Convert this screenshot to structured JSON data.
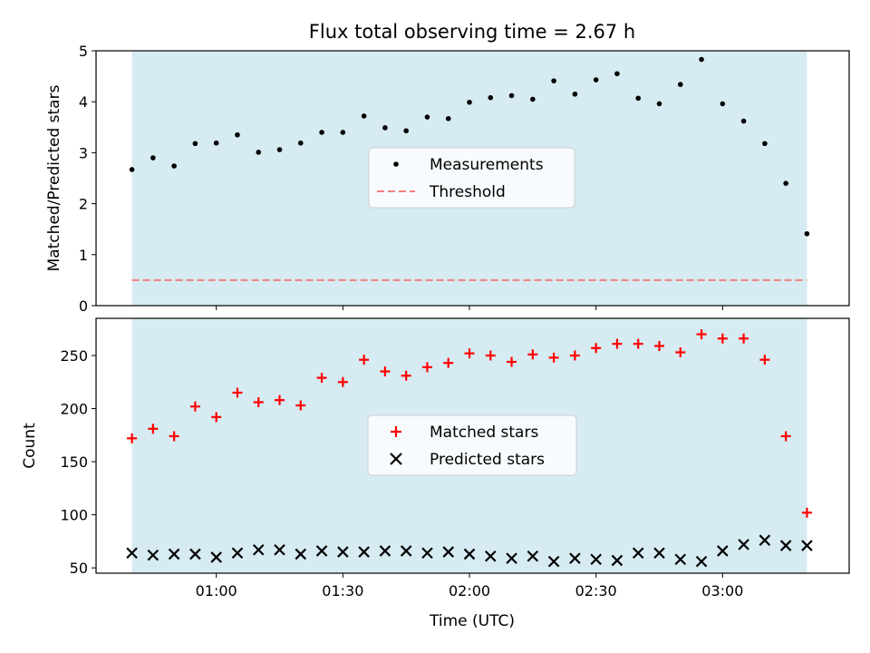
{
  "colors": {
    "shade": "#add8e6",
    "measurement": "#000000",
    "threshold": "#f08080",
    "matched": "#ff0000",
    "predicted": "#000000"
  },
  "chart_data": {
    "type": "scatter",
    "title": "Flux total observing time = 2.67 h",
    "xlabel": "Time (UTC)",
    "x": [
      "00:40",
      "00:45",
      "00:50",
      "00:55",
      "01:00",
      "01:05",
      "01:10",
      "01:15",
      "01:20",
      "01:25",
      "01:30",
      "01:35",
      "01:40",
      "01:45",
      "01:50",
      "01:55",
      "02:00",
      "02:05",
      "02:10",
      "02:15",
      "02:20",
      "02:25",
      "02:30",
      "02:35",
      "02:40",
      "02:45",
      "02:50",
      "02:55",
      "03:00",
      "03:05",
      "03:10",
      "03:15",
      "03:20"
    ],
    "x_minutes": [
      40,
      45,
      50,
      55,
      60,
      65,
      70,
      75,
      80,
      85,
      90,
      95,
      100,
      105,
      110,
      115,
      120,
      125,
      130,
      135,
      140,
      145,
      150,
      155,
      160,
      165,
      170,
      175,
      180,
      185,
      190,
      195,
      200
    ],
    "xlim_minutes": [
      31.5,
      210
    ],
    "xticks": [
      {
        "label": "01:00",
        "minutes": 60
      },
      {
        "label": "01:30",
        "minutes": 90
      },
      {
        "label": "02:00",
        "minutes": 120
      },
      {
        "label": "02:30",
        "minutes": 150
      },
      {
        "label": "03:00",
        "minutes": 180
      }
    ],
    "shaded_span_minutes": [
      40,
      200
    ],
    "top_panel": {
      "ylabel": "Matched/Predicted stars",
      "ylim": [
        0,
        5
      ],
      "yticks": [
        "0",
        "1",
        "2",
        "3",
        "4",
        "5"
      ],
      "series": [
        {
          "name": "Measurements",
          "marker": "dot",
          "values": [
            2.67,
            2.9,
            2.74,
            3.18,
            3.19,
            3.35,
            3.01,
            3.06,
            3.19,
            3.4,
            3.4,
            3.72,
            3.49,
            3.43,
            3.7,
            3.67,
            3.99,
            4.08,
            4.12,
            4.05,
            4.41,
            4.15,
            4.43,
            4.55,
            4.07,
            3.96,
            4.34,
            4.83,
            3.96,
            3.62,
            3.18,
            2.4,
            1.41
          ]
        }
      ],
      "threshold": {
        "name": "Threshold",
        "value": 0.5
      }
    },
    "bottom_panel": {
      "ylabel": "Count",
      "ylim": [
        45,
        285
      ],
      "yticks": [
        "50",
        "100",
        "150",
        "200",
        "250"
      ],
      "series": [
        {
          "name": "Matched stars",
          "marker": "plus",
          "values": [
            172,
            181,
            174,
            202,
            192,
            215,
            206,
            208,
            203,
            229,
            225,
            246,
            235,
            231,
            239,
            243,
            252,
            250,
            244,
            251,
            248,
            250,
            257,
            261,
            261,
            259,
            253,
            270,
            266,
            266,
            246,
            174,
            102
          ]
        },
        {
          "name": "Predicted stars",
          "marker": "x",
          "values": [
            64,
            62,
            63,
            63,
            60,
            64,
            67,
            67,
            63,
            66,
            65,
            65,
            66,
            66,
            64,
            65,
            63,
            61,
            59,
            61,
            56,
            59,
            58,
            57,
            64,
            64,
            58,
            56,
            66,
            72,
            76,
            71,
            71
          ]
        }
      ]
    }
  }
}
